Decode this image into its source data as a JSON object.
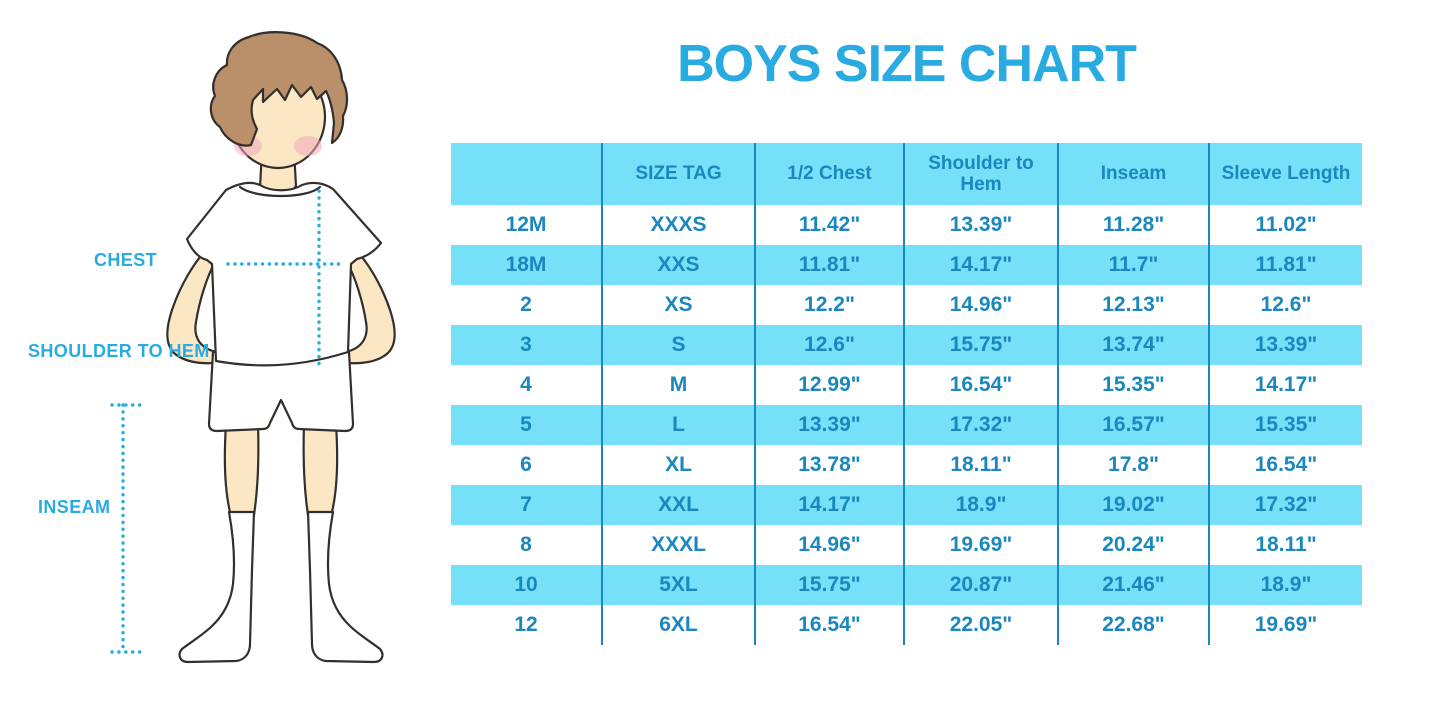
{
  "title": "BOYS SIZE CHART",
  "figure": {
    "labels": {
      "chest": "CHEST",
      "shoulder_to_hem": "SHOULDER TO HEM",
      "inseam": "INSEAM"
    }
  },
  "chart_data": {
    "type": "table",
    "title": "BOYS SIZE CHART",
    "columns": [
      "",
      "SIZE TAG",
      "1/2 Chest",
      "Shoulder to Hem",
      "Inseam",
      "Sleeve Length"
    ],
    "rows": [
      [
        "12M",
        "XXXS",
        "11.42\"",
        "13.39\"",
        "11.28\"",
        "11.02\""
      ],
      [
        "18M",
        "XXS",
        "11.81\"",
        "14.17\"",
        "11.7\"",
        "11.81\""
      ],
      [
        "2",
        "XS",
        "12.2\"",
        "14.96\"",
        "12.13\"",
        "12.6\""
      ],
      [
        "3",
        "S",
        "12.6\"",
        "15.75\"",
        "13.74\"",
        "13.39\""
      ],
      [
        "4",
        "M",
        "12.99\"",
        "16.54\"",
        "15.35\"",
        "14.17\""
      ],
      [
        "5",
        "L",
        "13.39\"",
        "17.32\"",
        "16.57\"",
        "15.35\""
      ],
      [
        "6",
        "XL",
        "13.78\"",
        "18.11\"",
        "17.8\"",
        "16.54\""
      ],
      [
        "7",
        "XXL",
        "14.17\"",
        "18.9\"",
        "19.02\"",
        "17.32\""
      ],
      [
        "8",
        "XXXL",
        "14.96\"",
        "19.69\"",
        "20.24\"",
        "18.11\""
      ],
      [
        "10",
        "5XL",
        "15.75\"",
        "20.87\"",
        "21.46\"",
        "18.9\""
      ],
      [
        "12",
        "6XL",
        "16.54\"",
        "22.05\"",
        "22.68\"",
        "19.69\""
      ]
    ],
    "layout": {
      "header_background": "light-blue band",
      "row_striping": "alternating white / light-blue"
    }
  },
  "colors": {
    "accent": "#29ABE2",
    "band": "#76E0F8",
    "table_text": "#1A87BE",
    "divider": "#1A87BE",
    "skin": "#FBE7C3",
    "hair": "#B9906A",
    "blush": "#F3A8BB",
    "outline": "#332F2C"
  }
}
